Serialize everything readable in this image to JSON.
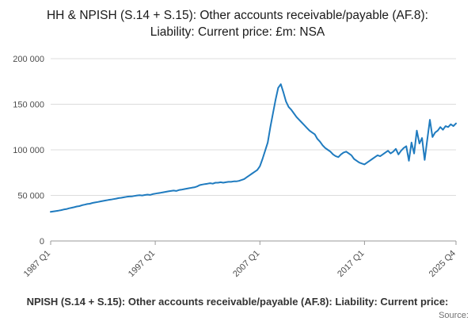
{
  "title": "HH & NPISH (S.14 + S.15): Other accounts receivable/payable (AF.8): Liability: Current price: £m: NSA",
  "footer": {
    "caption": "NPISH (S.14 + S.15): Other accounts receivable/payable (AF.8): Liability: Current price:",
    "source_label": "Source:"
  },
  "chart_data": {
    "type": "line",
    "title": "HH & NPISH (S.14 + S.15): Other accounts receivable/payable (AF.8): Liability: Current price: £m: NSA",
    "x_tick_labels": [
      "1987 Q1",
      "1997 Q1",
      "2007 Q1",
      "2017 Q1",
      "2025 Q4"
    ],
    "y_tick_labels": [
      "0",
      "50 000",
      "100 000",
      "150 000",
      "200 000"
    ],
    "y_ticks": [
      0,
      50000,
      100000,
      150000,
      200000
    ],
    "ylim": [
      0,
      200000
    ],
    "x_range_note": "quarterly observations from 1987 Q1 to 2025 Q4",
    "grid": "horizontal",
    "legend": "none",
    "line_color": "#1f7bbf",
    "series": [
      {
        "name": "HH & NPISH (S.14 + S.15): Other accounts receivable/payable (AF.8): Liability: Current price: £m: NSA",
        "values": [
          32000,
          32400,
          32900,
          33300,
          33800,
          34500,
          35000,
          35800,
          36400,
          37000,
          37800,
          38300,
          39200,
          39800,
          40500,
          40900,
          41700,
          42300,
          42800,
          43400,
          43900,
          44400,
          45000,
          45400,
          45900,
          46400,
          47000,
          47400,
          47900,
          48400,
          48800,
          48900,
          49400,
          49900,
          50300,
          49900,
          50400,
          50900,
          50500,
          51400,
          51900,
          52400,
          52900,
          53400,
          53900,
          54400,
          54900,
          55300,
          54900,
          55800,
          56300,
          56900,
          57400,
          57900,
          58400,
          58900,
          59800,
          61300,
          61900,
          62400,
          62900,
          63400,
          62900,
          63900,
          63900,
          64400,
          63900,
          64400,
          64900,
          64900,
          65400,
          65400,
          65900,
          66900,
          67900,
          69900,
          71900,
          73900,
          75900,
          77900,
          82000,
          90000,
          99000,
          108000,
          125000,
          140000,
          155000,
          168000,
          172000,
          163000,
          153000,
          147000,
          144000,
          140000,
          136000,
          133000,
          130000,
          127000,
          124000,
          121000,
          119000,
          117000,
          112000,
          109000,
          105000,
          102000,
          100000,
          98000,
          95000,
          93000,
          92000,
          95000,
          97000,
          98000,
          96000,
          94000,
          90000,
          88000,
          86000,
          85000,
          84000,
          86000,
          88000,
          90000,
          92000,
          94000,
          93000,
          95000,
          97000,
          99000,
          96000,
          98000,
          101000,
          95000,
          99000,
          102000,
          104000,
          88000,
          108000,
          96000,
          121000,
          107000,
          113000,
          89000,
          111000,
          133000,
          114000,
          119000,
          121000,
          125000,
          122000,
          126000,
          125000,
          128000,
          126000,
          129000
        ]
      }
    ]
  }
}
